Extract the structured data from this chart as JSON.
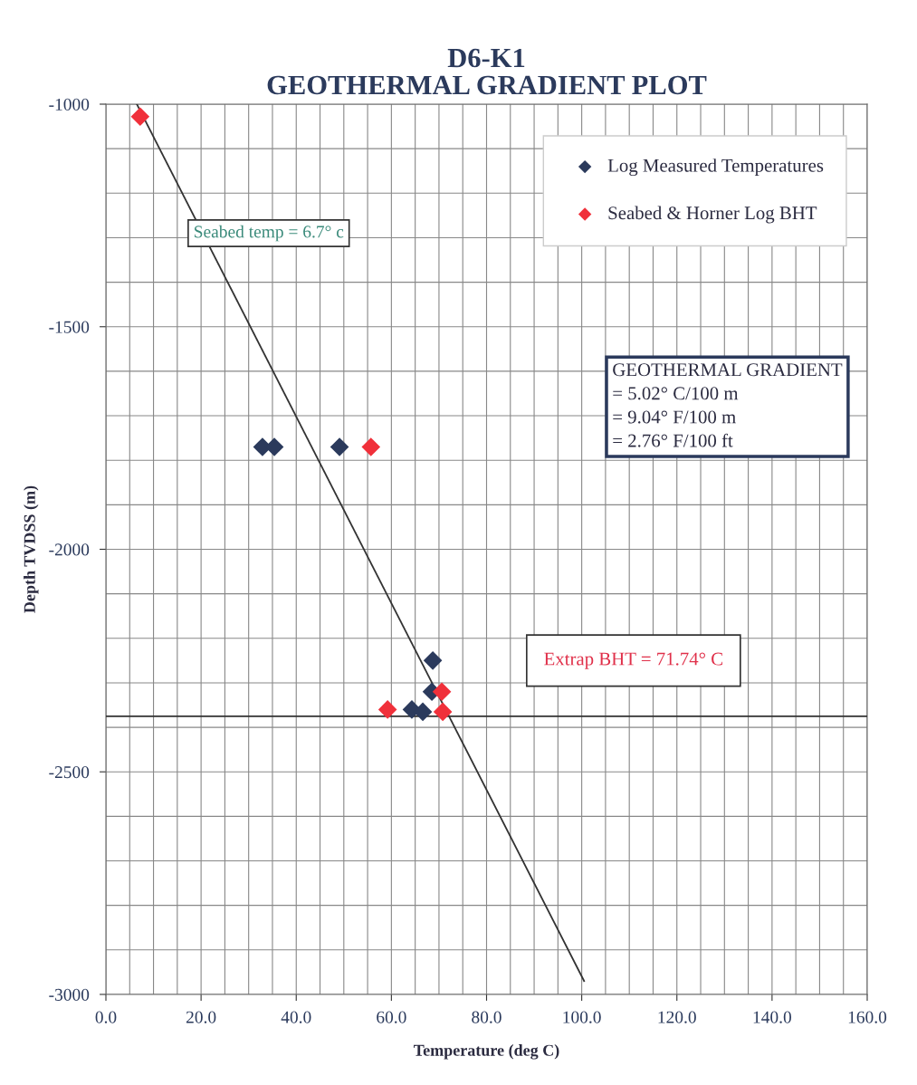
{
  "chart_data": {
    "type": "scatter",
    "title": "D6-K1\nGEOTHERMAL GRADIENT PLOT",
    "xlabel": "Temperature (deg C)",
    "ylabel": "Depth TVDSS (m)",
    "series": [
      {
        "name": "Log Measured Temperatures",
        "color": "#2b3a5c",
        "marker": "diamond",
        "x": [
          32.9,
          35.4,
          49.1,
          68.7,
          68.5,
          64.3,
          66.6
        ],
        "values": [
          -1770,
          -1770,
          -1770,
          -2250,
          -2320,
          -2360,
          -2365
        ]
      },
      {
        "name": "Seabed & Horner Log BHT",
        "color": "#f0303a",
        "marker": "diamond",
        "x": [
          7.2,
          55.7,
          70.6,
          59.2,
          70.8
        ],
        "values": [
          -1028,
          -1770,
          -2320,
          -2360,
          -2365
        ]
      },
      {
        "type": "line",
        "color": "#333333",
        "marker": "none",
        "x": [
          6.5,
          100.5
        ],
        "values": [
          -1000,
          -2970
        ]
      }
    ],
    "ref_lines": [
      {
        "axis": "y",
        "value": -2375,
        "color": "#333333"
      }
    ],
    "annotations": [
      "Seabed temp = 6.7° c",
      "GEOTHERMAL GRADIENT\n= 5.02° C/100 m\n= 9.04° F/100 m\n= 2.76° F/100 ft",
      "Extrap BHT = 71.74° C"
    ],
    "xlim": [
      0,
      160
    ],
    "xticks": [
      {
        "value": 0,
        "label": "0.0"
      },
      {
        "value": 20,
        "label": "20.0"
      },
      {
        "value": 40,
        "label": "40.0"
      },
      {
        "value": 60,
        "label": "60.0"
      },
      {
        "value": 80,
        "label": "80.0"
      },
      {
        "value": 100,
        "label": "100.0"
      },
      {
        "value": 120,
        "label": "120.0"
      },
      {
        "value": 140,
        "label": "140.0"
      },
      {
        "value": 160,
        "label": "160.0"
      }
    ],
    "ylim": [
      -3000,
      -1000
    ],
    "yticks": [
      -3000,
      -2500,
      -2000,
      -1500,
      -1000
    ],
    "grid": true,
    "legend": "top right"
  }
}
